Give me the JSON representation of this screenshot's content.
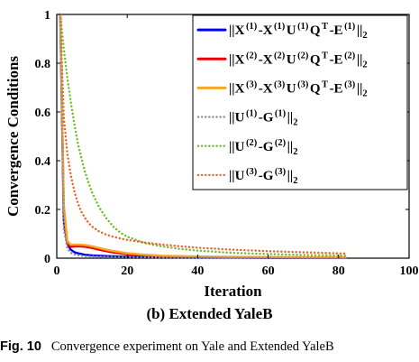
{
  "chart_data": {
    "type": "line",
    "xlabel": "Iteration",
    "ylabel": "Convergence Conditions",
    "xlim": [
      0,
      100
    ],
    "ylim": [
      0,
      1
    ],
    "xticks": [
      "0",
      "20",
      "40",
      "60",
      "80",
      "100"
    ],
    "yticks": [
      "0",
      "0.2",
      "0.4",
      "0.6",
      "0.8",
      "1"
    ],
    "grid": false,
    "legend_position": "top-right",
    "series": [
      {
        "name": "||X (1) -X (1) U (1) Q T -E (1) ||2",
        "legend": {
          "pre": "||X",
          "sup1": "(1)",
          "mid1": "-X",
          "sup2": "(1)",
          "mid2": "U",
          "sup3": "(1)",
          "mid3": "Q",
          "sup4": "T",
          "mid4": "-E",
          "sup5": "(1)",
          "post": "||",
          "sub": "2"
        },
        "color": "#0000ee",
        "style": "solid",
        "x": [
          1,
          2,
          3,
          4,
          5,
          6,
          8,
          10,
          15,
          20,
          30,
          40,
          50,
          60,
          70,
          82
        ],
        "y": [
          1.0,
          0.15,
          0.06,
          0.035,
          0.025,
          0.02,
          0.014,
          0.011,
          0.008,
          0.006,
          0.004,
          0.003,
          0.0025,
          0.002,
          0.0018,
          0.0015
        ]
      },
      {
        "name": "||X (2) -X (2) U (2) Q T -E (2) ||2",
        "legend": {
          "pre": "||X",
          "sup1": "(2)",
          "mid1": "-X",
          "sup2": "(2)",
          "mid2": "U",
          "sup3": "(2)",
          "mid3": "Q",
          "sup4": "T",
          "mid4": "-E",
          "sup5": "(2)",
          "post": "||",
          "sub": "2"
        },
        "color": "#ee0000",
        "style": "solid",
        "x": [
          1,
          2,
          3,
          4,
          5,
          6,
          8,
          10,
          12,
          15,
          20,
          25,
          30,
          40,
          50,
          60,
          70,
          82
        ],
        "y": [
          1.0,
          0.2,
          0.06,
          0.047,
          0.048,
          0.049,
          0.047,
          0.042,
          0.035,
          0.026,
          0.016,
          0.011,
          0.008,
          0.005,
          0.004,
          0.0035,
          0.003,
          0.0025
        ]
      },
      {
        "name": "||X (3) -X (3) U (3) Q T -E (3) ||2",
        "legend": {
          "pre": "||X",
          "sup1": "(3)",
          "mid1": "-X",
          "sup2": "(3)",
          "mid2": "U",
          "sup3": "(3)",
          "mid3": "Q",
          "sup4": "T",
          "mid4": "-E",
          "sup5": "(3)",
          "post": "||",
          "sub": "2"
        },
        "color": "#f5a623",
        "style": "solid",
        "x": [
          1,
          2,
          3,
          4,
          5,
          6,
          8,
          10,
          12,
          15,
          20,
          25,
          30,
          40,
          50,
          60,
          70,
          82
        ],
        "y": [
          1.0,
          0.22,
          0.07,
          0.055,
          0.055,
          0.056,
          0.054,
          0.049,
          0.042,
          0.032,
          0.02,
          0.014,
          0.01,
          0.007,
          0.005,
          0.0045,
          0.004,
          0.0035
        ]
      },
      {
        "name": "||U (1) -G (1) ||2",
        "legend": {
          "pre": "||U",
          "sup1": "(1)",
          "mid1": "-G",
          "sup2": "(1)",
          "post": "||",
          "sub": "2"
        },
        "color": "#8e8e8e",
        "style": "dotted",
        "x": [
          1,
          2,
          3,
          4,
          5,
          6,
          8,
          10,
          15,
          20,
          30,
          40,
          50,
          60,
          70,
          82
        ],
        "y": [
          1.0,
          0.12,
          0.04,
          0.022,
          0.015,
          0.012,
          0.009,
          0.007,
          0.005,
          0.004,
          0.003,
          0.0025,
          0.002,
          0.0018,
          0.0015,
          0.0012
        ]
      },
      {
        "name": "||U (2) -G (2) ||2",
        "legend": {
          "pre": "||U",
          "sup1": "(2)",
          "mid1": "-G",
          "sup2": "(2)",
          "post": "||",
          "sub": "2"
        },
        "color": "#6dbd2a",
        "style": "dotted",
        "x": [
          1,
          2,
          3,
          4,
          5,
          6,
          7,
          8,
          9,
          10,
          12,
          14,
          16,
          18,
          20,
          25,
          30,
          35,
          40,
          50,
          60,
          70,
          82
        ],
        "y": [
          1.0,
          0.86,
          0.74,
          0.64,
          0.55,
          0.47,
          0.41,
          0.355,
          0.31,
          0.27,
          0.21,
          0.165,
          0.13,
          0.105,
          0.088,
          0.062,
          0.048,
          0.038,
          0.031,
          0.022,
          0.017,
          0.013,
          0.01
        ]
      },
      {
        "name": "||U (3) -G (3) ||2",
        "legend": {
          "pre": "||U",
          "sup1": "(3)",
          "mid1": "-G",
          "sup2": "(3)",
          "post": "||",
          "sub": "2"
        },
        "color": "#e8612c",
        "style": "dotted",
        "x": [
          1,
          2,
          3,
          4,
          5,
          6,
          7,
          8,
          9,
          10,
          12,
          14,
          16,
          18,
          20,
          25,
          30,
          35,
          40,
          50,
          60,
          70,
          82
        ],
        "y": [
          1.0,
          0.58,
          0.43,
          0.34,
          0.275,
          0.225,
          0.19,
          0.165,
          0.145,
          0.13,
          0.11,
          0.097,
          0.088,
          0.081,
          0.075,
          0.064,
          0.056,
          0.049,
          0.043,
          0.035,
          0.029,
          0.024,
          0.019
        ]
      }
    ]
  },
  "subcaption": "(b) Extended YaleB",
  "caption": {
    "label": "Fig. 10",
    "text": "Convergence experiment on Yale and Extended YaleB"
  }
}
